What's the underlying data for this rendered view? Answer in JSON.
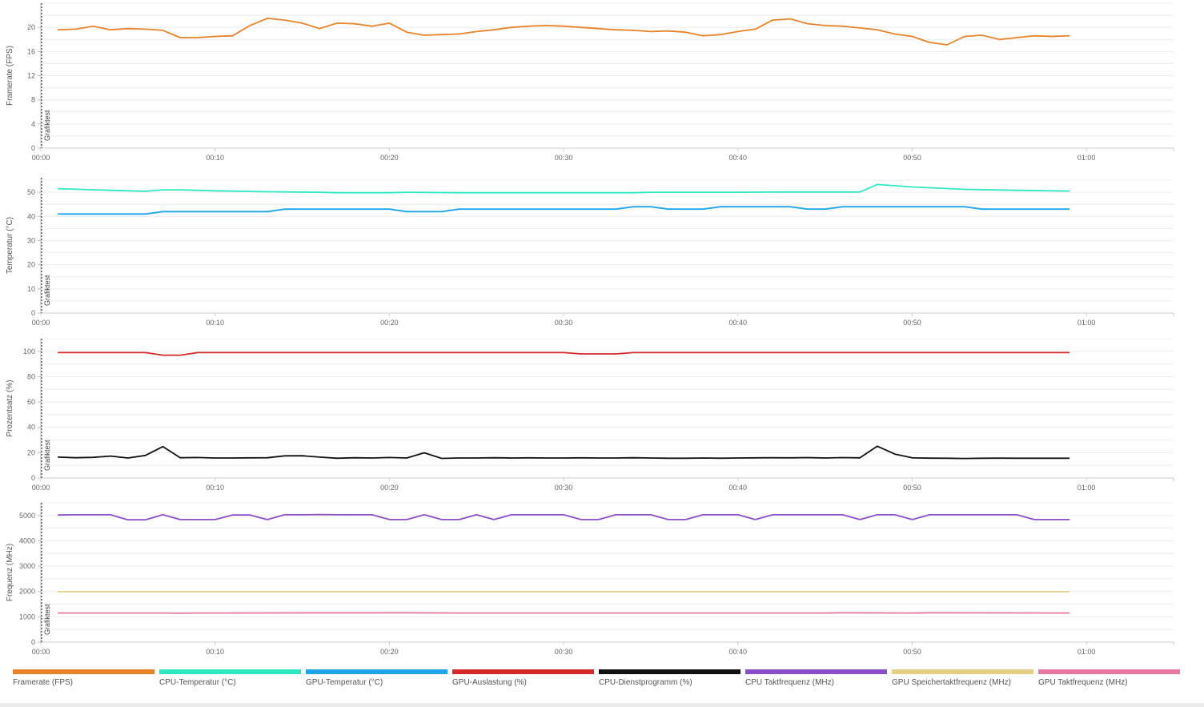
{
  "chart_data": [
    {
      "type": "line",
      "ylabel": "Framerate (FPS)",
      "marker_label": "Grafiktest",
      "ylim": [
        0,
        24
      ],
      "y_ticks": [
        0,
        4,
        8,
        12,
        16,
        20
      ],
      "x_ticks": [
        "00:00",
        "00:10",
        "00:20",
        "00:30",
        "00:40",
        "00:50",
        "01:00"
      ],
      "xlim": [
        0,
        65
      ],
      "grid": true,
      "series": [
        {
          "name": "Framerate (FPS)",
          "color": "#e8832a",
          "x": [
            1,
            2,
            3,
            4,
            5,
            6,
            7,
            8,
            9,
            10,
            11,
            12,
            13,
            14,
            15,
            16,
            17,
            18,
            19,
            20,
            21,
            22,
            23,
            24,
            25,
            26,
            27,
            28,
            29,
            30,
            31,
            32,
            33,
            34,
            35,
            36,
            37,
            38,
            39,
            40,
            41,
            42,
            43,
            44,
            45,
            46,
            47,
            48,
            49,
            50,
            51,
            52,
            53,
            54,
            55,
            56,
            57,
            58,
            59
          ],
          "y": [
            19.6,
            19.7,
            20.2,
            19.6,
            19.8,
            19.7,
            19.5,
            18.3,
            18.3,
            18.5,
            18.6,
            20.3,
            21.5,
            21.2,
            20.7,
            19.8,
            20.7,
            20.6,
            20.2,
            20.7,
            19.2,
            18.7,
            18.8,
            18.9,
            19.3,
            19.6,
            20.0,
            20.2,
            20.3,
            20.2,
            20.0,
            19.8,
            19.6,
            19.5,
            19.3,
            19.4,
            19.2,
            18.6,
            18.8,
            19.3,
            19.7,
            21.2,
            21.4,
            20.6,
            20.3,
            20.2,
            19.9,
            19.6,
            18.9,
            18.5,
            17.5,
            17.1,
            18.5,
            18.7,
            18.0,
            18.3,
            18.6,
            18.5,
            18.6
          ]
        }
      ]
    },
    {
      "type": "line",
      "ylabel": "Temperatur (°C)",
      "marker_label": "Grafiktest",
      "ylim": [
        0,
        56
      ],
      "y_ticks": [
        0,
        10,
        20,
        30,
        40,
        50
      ],
      "x_ticks": [
        "00:00",
        "00:10",
        "00:20",
        "00:30",
        "00:40",
        "00:50",
        "01:00"
      ],
      "xlim": [
        0,
        65
      ],
      "grid": true,
      "series": [
        {
          "name": "CPU-Temperatur (°C)",
          "color": "#2ee8c2",
          "x": [
            1,
            4,
            6,
            7,
            8,
            10,
            13,
            16,
            17,
            20,
            21,
            24,
            30,
            34,
            35,
            40,
            42,
            47,
            48,
            50,
            53,
            56,
            59
          ],
          "y": [
            51.5,
            50.8,
            50.4,
            51,
            51,
            50.6,
            50.2,
            50,
            49.8,
            49.8,
            50,
            49.8,
            49.8,
            49.8,
            50,
            50,
            50.1,
            50.1,
            53.2,
            52.2,
            51.2,
            50.8,
            50.5
          ]
        },
        {
          "name": "GPU-Temperatur (°C)",
          "color": "#1fa4ea",
          "x": [
            1,
            6,
            7,
            13,
            14,
            20,
            21,
            23,
            24,
            30,
            31,
            33,
            34,
            35,
            36,
            38,
            39,
            43,
            44,
            45,
            46,
            53,
            54,
            59
          ],
          "y": [
            41,
            41,
            42,
            42,
            43,
            43,
            42,
            42,
            43,
            43,
            43,
            43,
            44,
            44,
            43,
            43,
            44,
            44,
            43,
            43,
            44,
            44,
            43,
            43
          ]
        }
      ]
    },
    {
      "type": "line",
      "ylabel": "Prozentsatz (%)",
      "marker_label": "Grafiktest",
      "ylim": [
        0,
        110
      ],
      "y_ticks": [
        0,
        20,
        40,
        60,
        80,
        100
      ],
      "x_ticks": [
        "00:00",
        "00:10",
        "00:20",
        "00:30",
        "00:40",
        "00:50",
        "01:00"
      ],
      "xlim": [
        0,
        65
      ],
      "grid": true,
      "series": [
        {
          "name": "GPU-Auslastung (%)",
          "color": "#d42a2a",
          "x": [
            1,
            6,
            7,
            8,
            9,
            30,
            31,
            33,
            34,
            59
          ],
          "y": [
            99,
            99,
            97,
            97,
            99,
            99,
            98,
            98,
            99,
            99
          ]
        },
        {
          "name": "CPU-Dienstprogramm (%)",
          "color": "#111111",
          "x": [
            1,
            2,
            3,
            4,
            5,
            6,
            7,
            8,
            9,
            10,
            11,
            12,
            13,
            14,
            15,
            16,
            17,
            18,
            19,
            20,
            21,
            22,
            23,
            24,
            25,
            26,
            27,
            28,
            29,
            30,
            31,
            32,
            33,
            34,
            35,
            36,
            37,
            38,
            39,
            40,
            41,
            42,
            43,
            44,
            45,
            46,
            47,
            48,
            49,
            50,
            51,
            52,
            53,
            54,
            55,
            56,
            57,
            58,
            59
          ],
          "y": [
            16.5,
            16,
            16.3,
            17.3,
            15.8,
            17.8,
            24.8,
            16,
            16.2,
            15.8,
            15.8,
            15.9,
            16,
            17.5,
            17.6,
            16.5,
            15.6,
            16,
            15.8,
            16.2,
            15.8,
            19.9,
            15.5,
            15.8,
            15.8,
            16,
            15.8,
            15.9,
            15.8,
            15.8,
            15.9,
            15.8,
            15.8,
            16,
            15.8,
            15.6,
            15.6,
            15.8,
            15.6,
            15.8,
            15.9,
            16,
            15.9,
            16.1,
            15.8,
            16.1,
            15.9,
            25.1,
            18.9,
            15.9,
            15.7,
            15.6,
            15.4,
            15.6,
            15.7,
            15.6,
            15.6,
            15.6,
            15.6
          ]
        }
      ]
    },
    {
      "type": "line",
      "ylabel": "Frequenz (MHz)",
      "marker_label": "Grafiktest",
      "ylim": [
        0,
        5500
      ],
      "y_ticks": [
        0,
        1000,
        2000,
        3000,
        4000,
        5000
      ],
      "x_ticks": [
        "00:00",
        "00:10",
        "00:20",
        "00:30",
        "00:40",
        "00:50",
        "01:00"
      ],
      "xlim": [
        0,
        65
      ],
      "grid": true,
      "series": [
        {
          "name": "CPU Taktfrequenz (MHz)",
          "color": "#8a4fc9",
          "x": [
            1,
            2,
            3,
            4,
            5,
            6,
            7,
            8,
            9,
            10,
            11,
            12,
            13,
            14,
            15,
            16,
            17,
            18,
            19,
            20,
            21,
            22,
            23,
            24,
            25,
            26,
            27,
            28,
            29,
            30,
            31,
            32,
            33,
            34,
            35,
            36,
            37,
            38,
            39,
            40,
            41,
            42,
            43,
            44,
            45,
            46,
            47,
            48,
            49,
            50,
            51,
            52,
            53,
            54,
            55,
            56,
            57,
            58,
            59
          ],
          "y": [
            5020,
            5030,
            5030,
            5030,
            4830,
            4830,
            5030,
            4840,
            4840,
            4840,
            5020,
            5020,
            4840,
            5030,
            5030,
            5040,
            5030,
            5030,
            5030,
            4840,
            4840,
            5030,
            4840,
            4840,
            5030,
            4840,
            5030,
            5030,
            5030,
            5030,
            4840,
            4840,
            5030,
            5030,
            5030,
            4840,
            4840,
            5030,
            5030,
            5030,
            4840,
            5030,
            5030,
            5030,
            5030,
            5030,
            4840,
            5030,
            5030,
            4840,
            5030,
            5030,
            5030,
            5030,
            5030,
            5030,
            4840,
            4840,
            4840
          ]
        },
        {
          "name": "GPU Speichertaktfrequenz (MHz)",
          "color": "#e3cf88",
          "x": [
            1,
            59
          ],
          "y": [
            1990,
            1990
          ]
        },
        {
          "name": "GPU Taktfrequenz (MHz)",
          "color": "#e6799f",
          "x": [
            1,
            7,
            8,
            9,
            21,
            24,
            45,
            46,
            50,
            51,
            59
          ],
          "y": [
            1150,
            1150,
            1140,
            1150,
            1160,
            1150,
            1150,
            1160,
            1150,
            1160,
            1150
          ]
        }
      ]
    }
  ],
  "legend": [
    {
      "label": "Framerate (FPS)",
      "color": "#e8832a"
    },
    {
      "label": "CPU-Temperatur (°C)",
      "color": "#2ee8c2"
    },
    {
      "label": "GPU-Temperatur (°C)",
      "color": "#1fa4ea"
    },
    {
      "label": "GPU-Auslastung (%)",
      "color": "#d42a2a"
    },
    {
      "label": "CPU-Dienstprogramm (%)",
      "color": "#111111"
    },
    {
      "label": "CPU Taktfrequenz (MHz)",
      "color": "#8a4fc9"
    },
    {
      "label": "GPU Speichertaktfrequenz (MHz)",
      "color": "#e3cf88"
    },
    {
      "label": "GPU Taktfrequenz (MHz)",
      "color": "#e6799f"
    }
  ]
}
